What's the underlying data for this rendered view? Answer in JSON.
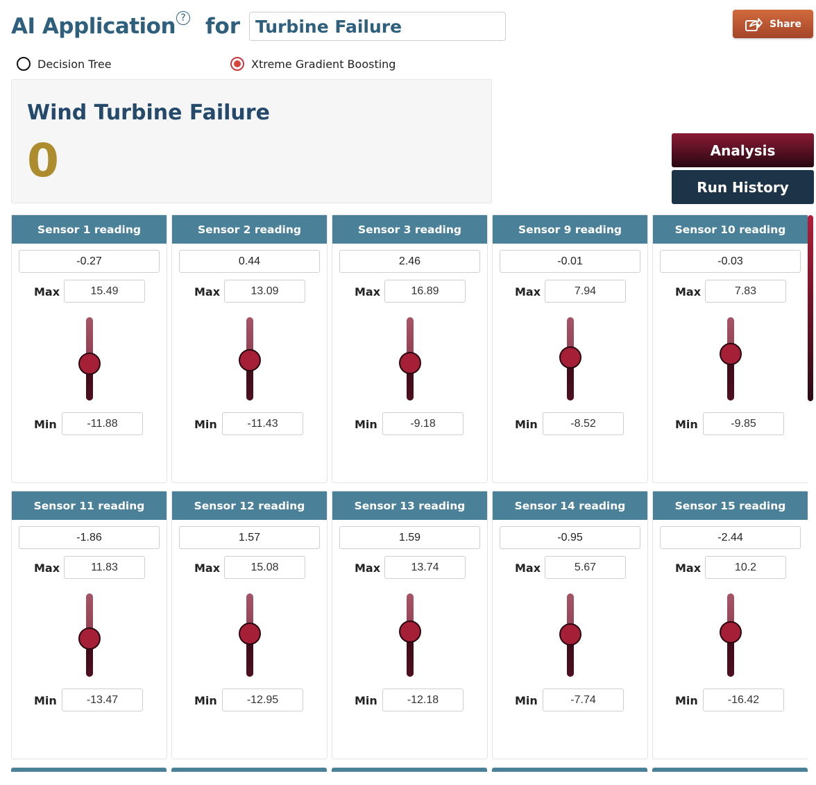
{
  "header": {
    "app_title": "AI Application",
    "help_glyph": "?",
    "for_label": "for",
    "use_case_value": "Turbine Failure",
    "share_label": "Share"
  },
  "models": [
    {
      "label": "Decision Tree",
      "selected": false
    },
    {
      "label": "Xtreme Gradient Boosting",
      "selected": true
    }
  ],
  "result": {
    "title": "Wind Turbine Failure",
    "value": "0"
  },
  "actions": {
    "analysis_label": "Analysis",
    "history_label": "Run History"
  },
  "labels": {
    "max": "Max",
    "min": "Min"
  },
  "sensors": [
    {
      "title": "Sensor 1 reading",
      "value": "-0.27",
      "max": "15.49",
      "min": "-11.88",
      "level": 0.44
    },
    {
      "title": "Sensor 2 reading",
      "value": "0.44",
      "max": "13.09",
      "min": "-11.43",
      "level": 0.48
    },
    {
      "title": "Sensor 3 reading",
      "value": "2.46",
      "max": "16.89",
      "min": "-9.18",
      "level": 0.45
    },
    {
      "title": "Sensor 9 reading",
      "value": "-0.01",
      "max": "7.94",
      "min": "-8.52",
      "level": 0.52
    },
    {
      "title": "Sensor 10 reading",
      "value": "-0.03",
      "max": "7.83",
      "min": "-9.85",
      "level": 0.56
    },
    {
      "title": "Sensor 11 reading",
      "value": "-1.86",
      "max": "11.83",
      "min": "-13.47",
      "level": 0.46
    },
    {
      "title": "Sensor 12 reading",
      "value": "1.57",
      "max": "15.08",
      "min": "-12.95",
      "level": 0.52
    },
    {
      "title": "Sensor 13 reading",
      "value": "1.59",
      "max": "13.74",
      "min": "-12.18",
      "level": 0.54
    },
    {
      "title": "Sensor 14 reading",
      "value": "-0.95",
      "max": "5.67",
      "min": "-7.74",
      "level": 0.51
    },
    {
      "title": "Sensor 15 reading",
      "value": "-2.44",
      "max": "10.2",
      "min": "-16.42",
      "level": 0.53
    }
  ],
  "colors": {
    "title_blue": "#2e5f7d",
    "result_gold": "#ad8c2d",
    "card_header": "#4a8199",
    "analysis_button": "#8a1a34",
    "history_button": "#1c3348",
    "share_button": "#c45d36",
    "slider_thumb": "#a51f36"
  }
}
